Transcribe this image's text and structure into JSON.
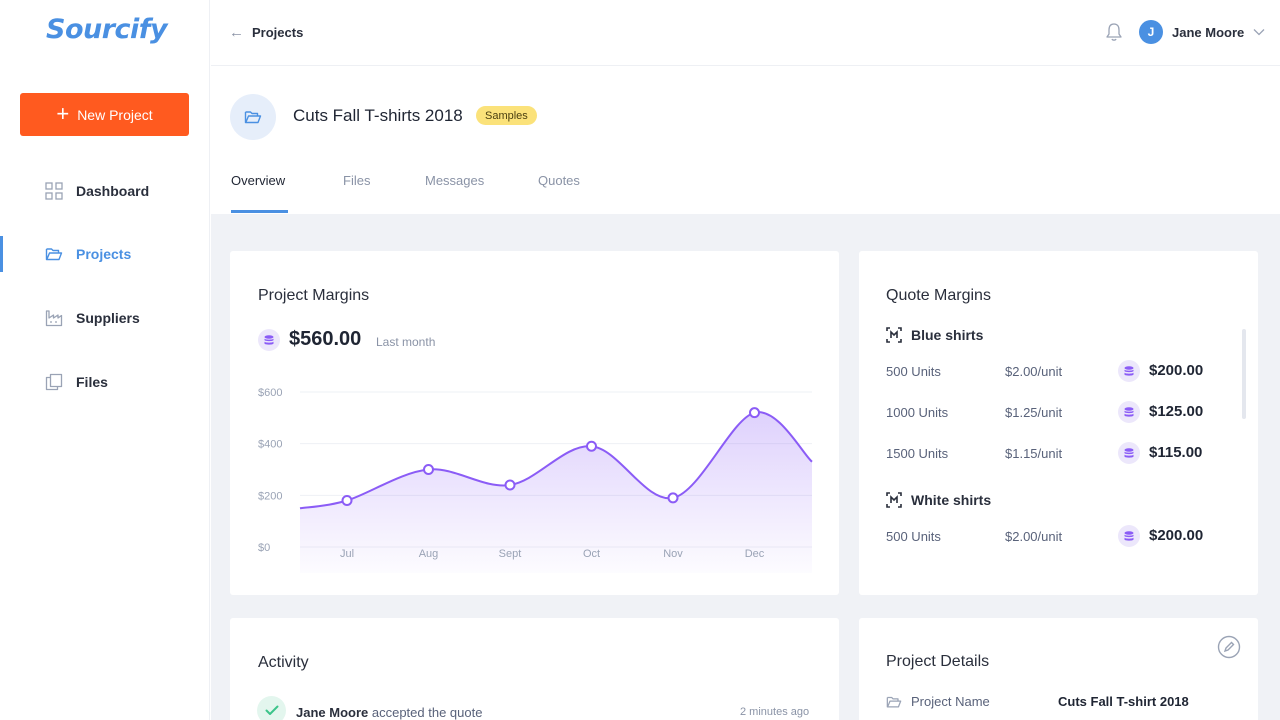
{
  "app": {
    "logo": "Sourcify"
  },
  "sidebar": {
    "new_button": "New Project",
    "items": [
      {
        "label": "Dashboard",
        "icon": "grid-icon",
        "active": false
      },
      {
        "label": "Projects",
        "icon": "folder-icon",
        "active": true
      },
      {
        "label": "Suppliers",
        "icon": "factory-icon",
        "active": false
      },
      {
        "label": "Files",
        "icon": "files-icon",
        "active": false
      }
    ]
  },
  "header": {
    "breadcrumb": "Projects",
    "user": {
      "initial": "J",
      "name": "Jane Moore"
    }
  },
  "project": {
    "title": "Cuts Fall T-shirts 2018",
    "badge": "Samples",
    "tabs": [
      "Overview",
      "Files",
      "Messages",
      "Quotes"
    ],
    "active_tab": "Overview"
  },
  "project_margins": {
    "title": "Project Margins",
    "amount": "$560.00",
    "period": "Last month"
  },
  "chart_data": {
    "type": "area",
    "categories": [
      "Jul",
      "Aug",
      "Sept",
      "Oct",
      "Nov",
      "Dec"
    ],
    "values": [
      180,
      300,
      240,
      390,
      190,
      520
    ],
    "line_start": 150,
    "line_end": 330,
    "y_ticks": [
      "$600",
      "$400",
      "$200",
      "$0"
    ],
    "ylim": [
      0,
      600
    ],
    "color": "#8b5cf6"
  },
  "quote_margins": {
    "title": "Quote Margins",
    "groups": [
      {
        "name": "Blue shirts",
        "rows": [
          {
            "units": "500 Units",
            "price": "$2.00/unit",
            "total": "$200.00"
          },
          {
            "units": "1000 Units",
            "price": "$1.25/unit",
            "total": "$125.00"
          },
          {
            "units": "1500 Units",
            "price": "$1.15/unit",
            "total": "$115.00"
          }
        ]
      },
      {
        "name": "White shirts",
        "rows": [
          {
            "units": "500 Units",
            "price": "$2.00/unit",
            "total": "$200.00"
          }
        ]
      }
    ]
  },
  "activity": {
    "title": "Activity",
    "items": [
      {
        "actor": "Jane Moore",
        "action": " accepted the quote",
        "time": "2 minutes ago"
      }
    ]
  },
  "project_details": {
    "title": "Project Details",
    "rows": [
      {
        "label": "Project Name",
        "value": "Cuts Fall T-shirt 2018"
      }
    ]
  }
}
